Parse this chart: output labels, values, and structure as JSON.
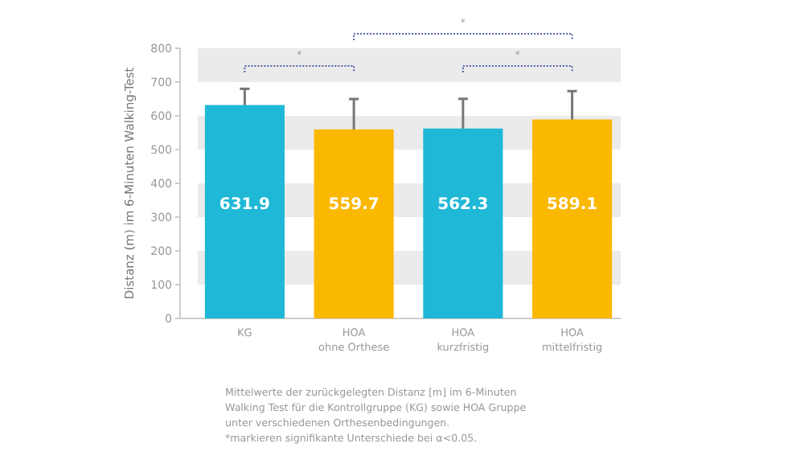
{
  "chart_data": {
    "type": "bar",
    "ylabel": "Distanz (m) im 6-Minuten Walking-Test",
    "categories": [
      "KG",
      "HOA\nohne Orthese",
      "HOA\nkurzfristig",
      "HOA\nmittelfristig"
    ],
    "values": [
      631.9,
      559.7,
      562.3,
      589.1
    ],
    "colors": [
      "#1fb8d6",
      "#fbb800",
      "#1fb8d6",
      "#fbb800"
    ],
    "errors": [
      48,
      90,
      88,
      84
    ],
    "data_labels": true,
    "ylim": [
      0,
      800
    ],
    "yticks": [
      0,
      100,
      200,
      300,
      400,
      500,
      600,
      700,
      800
    ],
    "grid": false,
    "bands": [
      {
        "axis": "y",
        "from": 100,
        "to": 200,
        "color": "#ebebeb"
      },
      {
        "axis": "y",
        "from": 300,
        "to": 400,
        "color": "#ebebeb"
      },
      {
        "axis": "y",
        "from": 500,
        "to": 600,
        "color": "#ebebeb"
      },
      {
        "axis": "y",
        "from": 700,
        "to": 800,
        "color": "#ebebeb"
      }
    ],
    "annotations": [
      "*",
      "*",
      "*",
      "Mittelwerte der zurückgelegten Distanz [m] im 6-Minuten\nWalking Test für die Kontrollgruppe (KG) sowie HOA Gruppe\nunter verschiedenen Orthesenbedingungen.\n*markieren signifikante Unterschiede bei α<0.05."
    ]
  }
}
